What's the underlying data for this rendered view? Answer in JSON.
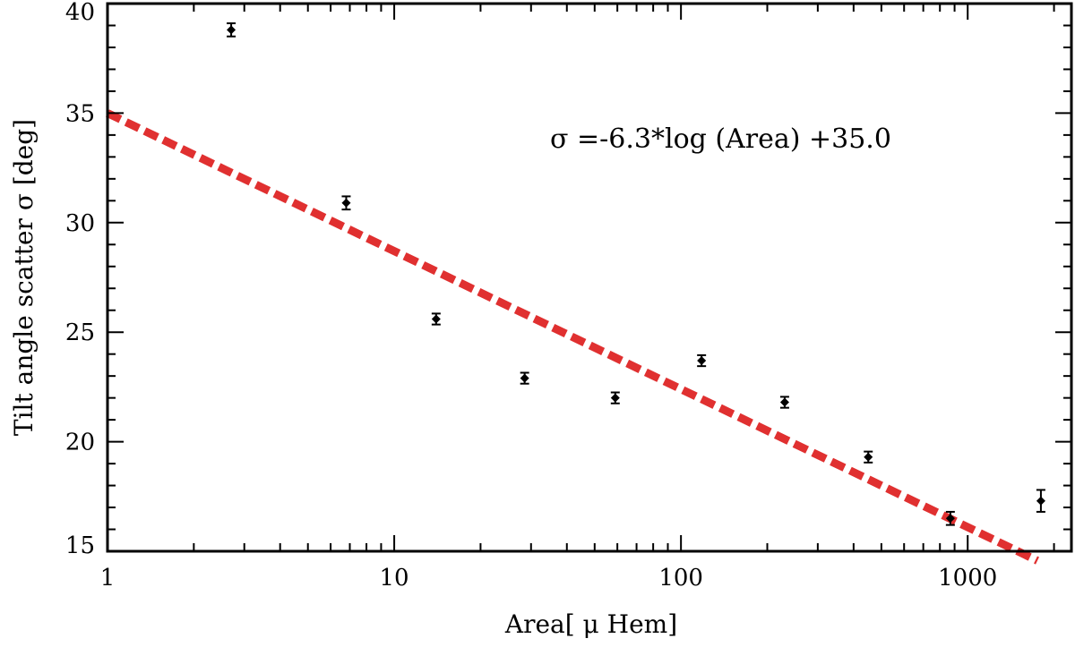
{
  "chart_data": {
    "type": "scatter",
    "title": "",
    "xlabel": "Area[ μ  Hem]",
    "ylabel": "Tilt angle scatter  σ [deg]",
    "xscale": "log",
    "xlim": [
      1,
      2300
    ],
    "ylim": [
      15,
      40
    ],
    "grid": false,
    "xticks": [
      1,
      10,
      100,
      1000
    ],
    "xtick_labels": [
      "1",
      "10",
      "100",
      "1000"
    ],
    "yticks": [
      15,
      20,
      25,
      30,
      35,
      40
    ],
    "ytick_labels": [
      "15",
      "20",
      "25",
      "30",
      "35",
      "40"
    ],
    "series": [
      {
        "marker": "diamond",
        "color": "#000000",
        "points": [
          {
            "x": 2.7,
            "y": 38.8,
            "err": 0.3
          },
          {
            "x": 6.8,
            "y": 30.9,
            "err": 0.3
          },
          {
            "x": 14,
            "y": 25.6,
            "err": 0.25
          },
          {
            "x": 28.5,
            "y": 22.9,
            "err": 0.25
          },
          {
            "x": 59,
            "y": 22.0,
            "err": 0.25
          },
          {
            "x": 118,
            "y": 23.7,
            "err": 0.25
          },
          {
            "x": 230,
            "y": 21.8,
            "err": 0.25
          },
          {
            "x": 450,
            "y": 19.3,
            "err": 0.25
          },
          {
            "x": 870,
            "y": 16.5,
            "err": 0.3
          },
          {
            "x": 1800,
            "y": 17.3,
            "err": 0.5
          }
        ]
      }
    ],
    "fit": {
      "color": "#e03030",
      "style": "dashed",
      "slope": -6.3,
      "intercept": 35.0,
      "x_range": [
        1,
        1750
      ]
    },
    "annotation": "σ =-6.3*log  (Area)  +35.0"
  }
}
